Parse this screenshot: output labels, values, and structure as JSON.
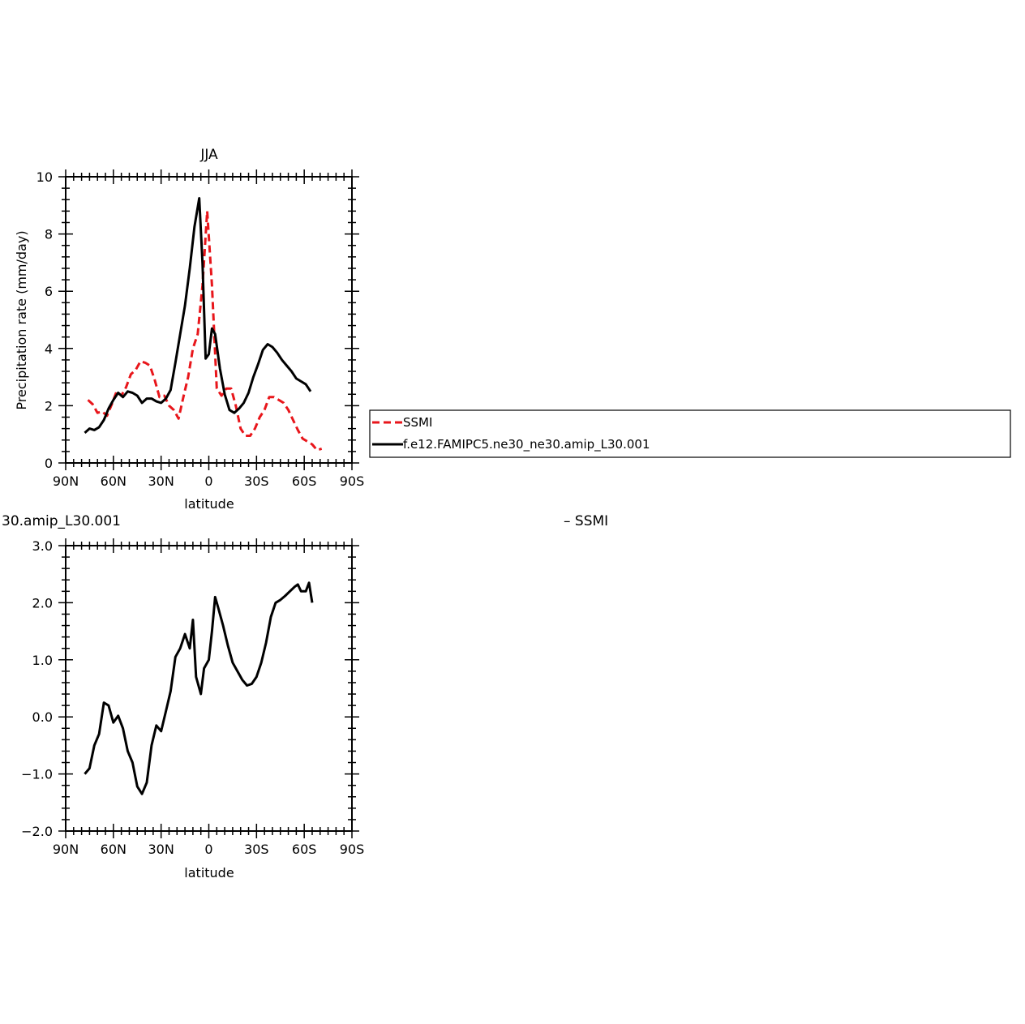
{
  "colors": {
    "obs": "#e8161b",
    "model": "#000000"
  },
  "chart_data": [
    {
      "type": "line",
      "title": "JJA",
      "xlabel": "latitude",
      "ylabel": "Precipitation rate (mm/day)",
      "xlim": [
        90,
        -90
      ],
      "ylim": [
        0,
        10
      ],
      "xticks": [
        {
          "v": 90,
          "label": "90N"
        },
        {
          "v": 60,
          "label": "60N"
        },
        {
          "v": 30,
          "label": "30N"
        },
        {
          "v": 0,
          "label": "0"
        },
        {
          "v": -30,
          "label": "30S"
        },
        {
          "v": -60,
          "label": "60S"
        },
        {
          "v": -90,
          "label": "90S"
        }
      ],
      "yticks": [
        {
          "v": 0,
          "label": "0"
        },
        {
          "v": 2,
          "label": "2"
        },
        {
          "v": 4,
          "label": "4"
        },
        {
          "v": 6,
          "label": "6"
        },
        {
          "v": 8,
          "label": "8"
        },
        {
          "v": 10,
          "label": "10"
        }
      ],
      "legend": {
        "placement": "right"
      },
      "series": [
        {
          "name": "SSMI",
          "style": "dashed",
          "color": "#e8161b",
          "points": [
            [
              76,
              2.2
            ],
            [
              73,
              2.05
            ],
            [
              70,
              1.75
            ],
            [
              67,
              1.8
            ],
            [
              64,
              1.65
            ],
            [
              61,
              2.05
            ],
            [
              58,
              2.5
            ],
            [
              55,
              2.35
            ],
            [
              52,
              2.65
            ],
            [
              49,
              3.1
            ],
            [
              46,
              3.25
            ],
            [
              43,
              3.55
            ],
            [
              40,
              3.5
            ],
            [
              37,
              3.4
            ],
            [
              34,
              2.9
            ],
            [
              31,
              2.3
            ],
            [
              28,
              2.35
            ],
            [
              25,
              2.0
            ],
            [
              22,
              1.85
            ],
            [
              19,
              1.55
            ],
            [
              16,
              2.3
            ],
            [
              13,
              3.0
            ],
            [
              10,
              4.0
            ],
            [
              7,
              4.5
            ],
            [
              4,
              6.2
            ],
            [
              1,
              8.8
            ],
            [
              -2,
              6.2
            ],
            [
              -5,
              2.6
            ],
            [
              -8,
              2.35
            ],
            [
              -11,
              2.6
            ],
            [
              -14,
              2.6
            ],
            [
              -17,
              2.0
            ],
            [
              -20,
              1.2
            ],
            [
              -23,
              0.95
            ],
            [
              -26,
              0.95
            ],
            [
              -29,
              1.2
            ],
            [
              -32,
              1.6
            ],
            [
              -35,
              1.85
            ],
            [
              -38,
              2.3
            ],
            [
              -41,
              2.3
            ],
            [
              -44,
              2.2
            ],
            [
              -47,
              2.1
            ],
            [
              -50,
              1.85
            ],
            [
              -53,
              1.5
            ],
            [
              -56,
              1.15
            ],
            [
              -59,
              0.85
            ],
            [
              -62,
              0.75
            ],
            [
              -65,
              0.65
            ],
            [
              -68,
              0.45
            ],
            [
              -71,
              0.5
            ]
          ]
        },
        {
          "name": "f.e12.FAMIPC5.ne30_ne30.amip_L30.001",
          "style": "solid",
          "color": "#000000",
          "points": [
            [
              78,
              1.05
            ],
            [
              75,
              1.2
            ],
            [
              72,
              1.15
            ],
            [
              69,
              1.25
            ],
            [
              66,
              1.5
            ],
            [
              63,
              1.9
            ],
            [
              60,
              2.2
            ],
            [
              57,
              2.45
            ],
            [
              54,
              2.3
            ],
            [
              51,
              2.5
            ],
            [
              48,
              2.45
            ],
            [
              45,
              2.35
            ],
            [
              42,
              2.1
            ],
            [
              39,
              2.25
            ],
            [
              36,
              2.25
            ],
            [
              33,
              2.15
            ],
            [
              30,
              2.1
            ],
            [
              27,
              2.25
            ],
            [
              24,
              2.55
            ],
            [
              21,
              3.5
            ],
            [
              18,
              4.5
            ],
            [
              15,
              5.5
            ],
            [
              12,
              6.8
            ],
            [
              9,
              8.25
            ],
            [
              6,
              9.25
            ],
            [
              4,
              7.0
            ],
            [
              2,
              3.65
            ],
            [
              0,
              3.8
            ],
            [
              -2,
              4.7
            ],
            [
              -4,
              4.5
            ],
            [
              -7,
              3.3
            ],
            [
              -10,
              2.4
            ],
            [
              -13,
              1.85
            ],
            [
              -16,
              1.75
            ],
            [
              -19,
              1.9
            ],
            [
              -22,
              2.1
            ],
            [
              -25,
              2.45
            ],
            [
              -28,
              3.0
            ],
            [
              -31,
              3.45
            ],
            [
              -34,
              3.95
            ],
            [
              -37,
              4.15
            ],
            [
              -40,
              4.05
            ],
            [
              -43,
              3.85
            ],
            [
              -46,
              3.6
            ],
            [
              -49,
              3.4
            ],
            [
              -52,
              3.2
            ],
            [
              -55,
              2.95
            ],
            [
              -58,
              2.85
            ],
            [
              -61,
              2.75
            ],
            [
              -64,
              2.5
            ]
          ]
        }
      ]
    },
    {
      "type": "line",
      "title": "30.amip_L30.001",
      "right_label": "SSMI",
      "xlabel": "latitude",
      "ylabel": "Precipitation rate (mm/day)",
      "xlim": [
        90,
        -90
      ],
      "ylim": [
        -2,
        3
      ],
      "xticks": [
        {
          "v": 90,
          "label": "90N"
        },
        {
          "v": 60,
          "label": "60N"
        },
        {
          "v": 30,
          "label": "30N"
        },
        {
          "v": 0,
          "label": "0"
        },
        {
          "v": -30,
          "label": "30S"
        },
        {
          "v": -60,
          "label": "60S"
        },
        {
          "v": -90,
          "label": "90S"
        }
      ],
      "yticks": [
        {
          "v": -2,
          "label": "−2.0"
        },
        {
          "v": -1,
          "label": "−1.0"
        },
        {
          "v": 0,
          "label": "0.0"
        },
        {
          "v": 1,
          "label": "1.0"
        },
        {
          "v": 2,
          "label": "2.0"
        },
        {
          "v": 3,
          "label": "3.0"
        }
      ],
      "series": [
        {
          "style": "solid",
          "color": "#000000",
          "points": [
            [
              78,
              -1.0
            ],
            [
              75,
              -0.9
            ],
            [
              72,
              -0.5
            ],
            [
              69,
              -0.3
            ],
            [
              66,
              0.25
            ],
            [
              63,
              0.2
            ],
            [
              60,
              -0.1
            ],
            [
              57,
              0.02
            ],
            [
              54,
              -0.2
            ],
            [
              51,
              -0.6
            ],
            [
              48,
              -0.8
            ],
            [
              45,
              -1.22
            ],
            [
              42,
              -1.35
            ],
            [
              39,
              -1.15
            ],
            [
              36,
              -0.5
            ],
            [
              33,
              -0.15
            ],
            [
              30,
              -0.25
            ],
            [
              27,
              0.1
            ],
            [
              24,
              0.45
            ],
            [
              21,
              1.05
            ],
            [
              18,
              1.2
            ],
            [
              15,
              1.45
            ],
            [
              12,
              1.2
            ],
            [
              10,
              1.7
            ],
            [
              8,
              0.7
            ],
            [
              5,
              0.4
            ],
            [
              3,
              0.85
            ],
            [
              0,
              1.0
            ],
            [
              -2,
              1.5
            ],
            [
              -4,
              2.1
            ],
            [
              -6,
              1.9
            ],
            [
              -9,
              1.6
            ],
            [
              -12,
              1.25
            ],
            [
              -15,
              0.95
            ],
            [
              -18,
              0.8
            ],
            [
              -21,
              0.65
            ],
            [
              -24,
              0.55
            ],
            [
              -27,
              0.58
            ],
            [
              -30,
              0.7
            ],
            [
              -33,
              0.95
            ],
            [
              -36,
              1.3
            ],
            [
              -39,
              1.75
            ],
            [
              -42,
              2.0
            ],
            [
              -45,
              2.05
            ],
            [
              -48,
              2.12
            ],
            [
              -51,
              2.2
            ],
            [
              -54,
              2.28
            ],
            [
              -56,
              2.32
            ],
            [
              -58,
              2.2
            ],
            [
              -61,
              2.2
            ],
            [
              -63,
              2.35
            ],
            [
              -65,
              2.0
            ]
          ]
        }
      ]
    }
  ]
}
